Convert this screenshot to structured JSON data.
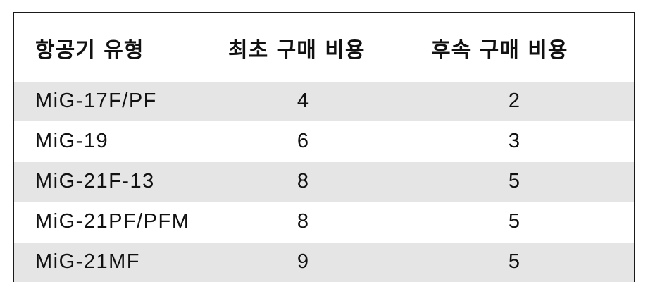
{
  "table": {
    "headers": [
      "항공기 유형",
      "최초 구매 비용",
      "후속 구매 비용"
    ],
    "rows": [
      {
        "type": "MiG-17F/PF",
        "initial": "4",
        "subsequent": "2"
      },
      {
        "type": "MiG-19",
        "initial": "6",
        "subsequent": "3"
      },
      {
        "type": "MiG-21F-13",
        "initial": "8",
        "subsequent": "5"
      },
      {
        "type": "MiG-21PF/PFM",
        "initial": "8",
        "subsequent": "5"
      },
      {
        "type": "MiG-21MF",
        "initial": "9",
        "subsequent": "5"
      }
    ],
    "colors": {
      "shaded_row": "#e5e5e5",
      "plain_row": "#ffffff",
      "border": "#1a1a1a"
    }
  }
}
